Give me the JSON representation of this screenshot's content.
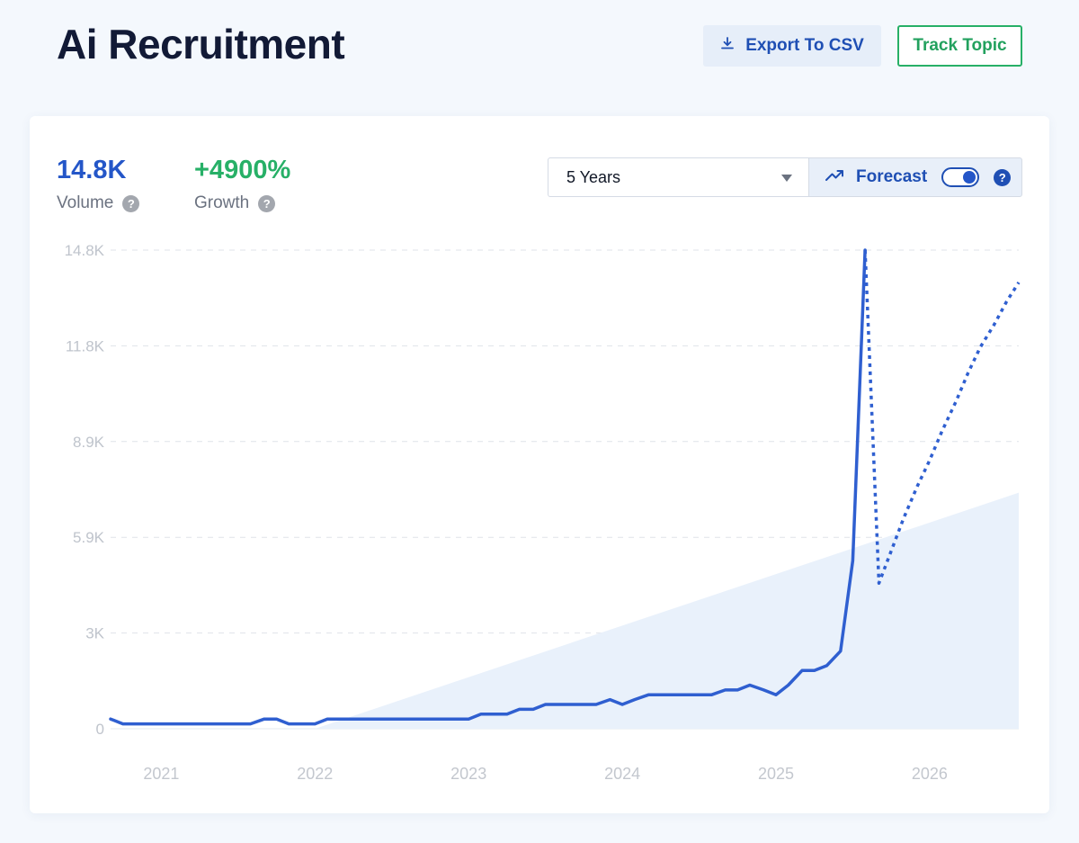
{
  "header": {
    "title": "Ai Recruitment",
    "export_label": "Export To CSV",
    "export_icon": "download-icon",
    "track_label": "Track Topic"
  },
  "stats": {
    "volume_value": "14.8K",
    "volume_label": "Volume",
    "growth_value": "+4900%",
    "growth_label": "Growth",
    "help_glyph": "?"
  },
  "controls": {
    "range_selected": "5 Years",
    "forecast_label": "Forecast",
    "forecast_icon": "trending-up-icon",
    "forecast_enabled": true
  },
  "colors": {
    "line": "#2f5fd0",
    "trend_fill": "#e9f1fb",
    "growth": "#27b067",
    "volume": "#2456c8"
  },
  "chart_data": {
    "type": "line",
    "title": "",
    "xlabel": "",
    "ylabel": "",
    "ylim": [
      0,
      14800
    ],
    "yticks": [
      {
        "value": 0,
        "label": "0"
      },
      {
        "value": 2960,
        "label": "3K"
      },
      {
        "value": 5920,
        "label": "5.9K"
      },
      {
        "value": 8880,
        "label": "8.9K"
      },
      {
        "value": 11840,
        "label": "11.8K"
      },
      {
        "value": 14800,
        "label": "14.8K"
      }
    ],
    "xlim": [
      2020.67,
      2026.58
    ],
    "xticks": [
      {
        "value": 2021,
        "label": "2021"
      },
      {
        "value": 2022,
        "label": "2022"
      },
      {
        "value": 2023,
        "label": "2023"
      },
      {
        "value": 2024,
        "label": "2024"
      },
      {
        "value": 2025,
        "label": "2025"
      },
      {
        "value": 2026,
        "label": "2026"
      }
    ],
    "grid": "horizontal dashed",
    "series": [
      {
        "style": "solid",
        "x": [
          2020.67,
          2020.75,
          2020.83,
          2020.92,
          2021.0,
          2021.08,
          2021.17,
          2021.25,
          2021.33,
          2021.42,
          2021.5,
          2021.58,
          2021.67,
          2021.75,
          2021.83,
          2021.92,
          2022.0,
          2022.08,
          2022.17,
          2022.25,
          2022.33,
          2022.42,
          2022.5,
          2022.58,
          2022.67,
          2022.75,
          2022.83,
          2022.92,
          2023.0,
          2023.08,
          2023.17,
          2023.25,
          2023.33,
          2023.42,
          2023.5,
          2023.58,
          2023.67,
          2023.75,
          2023.83,
          2023.92,
          2024.0,
          2024.08,
          2024.17,
          2024.25,
          2024.33,
          2024.42,
          2024.5,
          2024.58,
          2024.67,
          2024.75,
          2024.83,
          2024.92,
          2025.0,
          2025.08,
          2025.17,
          2025.25,
          2025.33,
          2025.42,
          2025.5,
          2025.58
        ],
        "y": [
          300,
          150,
          150,
          150,
          150,
          150,
          150,
          150,
          150,
          150,
          150,
          150,
          300,
          300,
          150,
          150,
          150,
          300,
          300,
          300,
          300,
          300,
          300,
          300,
          300,
          300,
          300,
          300,
          300,
          450,
          450,
          450,
          600,
          600,
          750,
          750,
          750,
          750,
          750,
          900,
          750,
          900,
          1050,
          1050,
          1050,
          1050,
          1050,
          1050,
          1200,
          1200,
          1350,
          1200,
          1050,
          1350,
          1800,
          1800,
          1950,
          2400,
          5200,
          14800
        ]
      },
      {
        "style": "dotted",
        "x": [
          2025.58,
          2025.67,
          2025.75,
          2025.83,
          2025.92,
          2026.0,
          2026.08,
          2026.17,
          2026.25,
          2026.33,
          2026.42,
          2026.5,
          2026.58
        ],
        "y": [
          14800,
          4500,
          5500,
          6500,
          7500,
          8300,
          9200,
          10100,
          11000,
          11800,
          12500,
          13200,
          13800
        ]
      }
    ],
    "trend_band": {
      "x": [
        2022.0,
        2026.58
      ],
      "y": [
        0,
        7300
      ]
    }
  }
}
